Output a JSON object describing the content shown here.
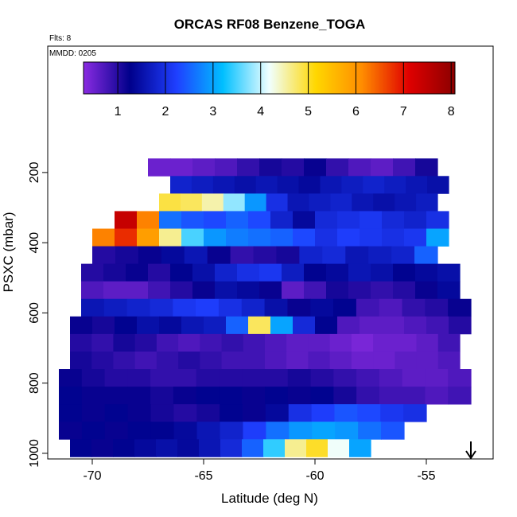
{
  "chart_data": {
    "type": "heatmap-rows",
    "title": "ORCAS RF08 Benzene_TOGA",
    "flights_note": "Flts: 8",
    "date_note": "MMDD: 0205",
    "x_label": "Latitude (deg N)",
    "y_label": "PSXC (mbar)",
    "xlim": [
      -72,
      -52
    ],
    "xticks": [
      -70,
      -65,
      -60,
      -55
    ],
    "ylim": [
      1016,
      -160
    ],
    "yticks": [
      200,
      400,
      600,
      800,
      1000
    ],
    "colorbar": {
      "lim": [
        0.28,
        8.08
      ],
      "ticks": [
        1,
        2,
        3,
        4,
        5,
        6,
        7,
        8
      ],
      "colors": [
        "#8a2be2",
        "#00008b",
        "#1f3fff",
        "#00bfff",
        "#f0ffff",
        "#ffd700",
        "#ff8c00",
        "#e00000",
        "#8b0000"
      ]
    },
    "rows": [
      {
        "p": [
          160,
          210
        ],
        "lat": [
          -67.5,
          -54.5
        ],
        "values": [
          0.5,
          0.5,
          0.6,
          0.7,
          0.9,
          1.1,
          1.0,
          1.2,
          0.9,
          0.7,
          0.6,
          0.8,
          1.1
        ]
      },
      {
        "p": [
          210,
          260
        ],
        "lat": [
          -66.5,
          -54
        ],
        "values": [
          1.8,
          1.7,
          1.6,
          1.5,
          1.6,
          1.5,
          1.4,
          1.6,
          1.7,
          1.8,
          1.7,
          1.6,
          1.5
        ]
      },
      {
        "p": [
          260,
          310
        ],
        "lat": [
          -67,
          -54.5
        ],
        "values": [
          4.9,
          4.8,
          4.5,
          3.8,
          2.9,
          2.0,
          1.6,
          1.7,
          1.8,
          1.6,
          1.5,
          1.6,
          1.7
        ]
      },
      {
        "p": [
          310,
          360
        ],
        "lat": [
          -69,
          -54
        ],
        "values": [
          7.4,
          6.2,
          2.6,
          2.4,
          2.3,
          2.5,
          2.3,
          1.8,
          1.4,
          1.9,
          2.0,
          2.1,
          1.9,
          1.8,
          2.0
        ]
      },
      {
        "p": [
          360,
          410
        ],
        "lat": [
          -70,
          -54
        ],
        "values": [
          6.2,
          6.8,
          5.9,
          4.6,
          3.5,
          2.9,
          2.7,
          2.6,
          2.5,
          2.3,
          2.0,
          2.2,
          2.1,
          2.0,
          2.1,
          3.0
        ]
      },
      {
        "p": [
          410,
          460
        ],
        "lat": [
          -70,
          -54.5
        ],
        "values": [
          1.0,
          1.1,
          1.2,
          1.4,
          1.6,
          1.2,
          0.9,
          1.0,
          1.1,
          1.8,
          1.9,
          1.6,
          1.7,
          1.8,
          2.5
        ]
      },
      {
        "p": [
          460,
          510
        ],
        "lat": [
          -70.5,
          -53.5
        ],
        "values": [
          1.0,
          1.1,
          1.2,
          1.0,
          1.3,
          1.5,
          1.8,
          2.0,
          2.1,
          1.7,
          1.3,
          1.4,
          1.6,
          1.5,
          1.3,
          1.4,
          1.5
        ]
      },
      {
        "p": [
          510,
          560
        ],
        "lat": [
          -70.5,
          -53.5
        ],
        "values": [
          0.7,
          0.6,
          0.6,
          0.8,
          1.0,
          1.2,
          1.5,
          1.4,
          1.2,
          0.6,
          0.8,
          1.1,
          1.0,
          0.9,
          1.0,
          1.2,
          1.4
        ]
      },
      {
        "p": [
          560,
          610
        ],
        "lat": [
          -70.5,
          -53
        ],
        "values": [
          1.6,
          1.7,
          1.8,
          1.9,
          2.1,
          2.2,
          2.0,
          1.8,
          1.5,
          1.2,
          1.4,
          1.3,
          0.8,
          0.7,
          0.9,
          1.0,
          1.2
        ]
      },
      {
        "p": [
          610,
          660
        ],
        "lat": [
          -71,
          -53
        ],
        "values": [
          1.2,
          1.1,
          1.3,
          1.5,
          1.4,
          1.6,
          1.7,
          2.5,
          4.8,
          3.0,
          1.9,
          1.3,
          0.7,
          0.6,
          0.6,
          0.7,
          0.8,
          1.0
        ]
      },
      {
        "p": [
          660,
          710
        ],
        "lat": [
          -71,
          -53.5
        ],
        "values": [
          1.0,
          0.9,
          1.1,
          1.0,
          0.8,
          0.7,
          0.8,
          0.9,
          0.8,
          0.7,
          0.6,
          0.6,
          0.5,
          0.4,
          0.5,
          0.5,
          0.6,
          0.8
        ]
      },
      {
        "p": [
          710,
          760
        ],
        "lat": [
          -71,
          -53.5
        ],
        "values": [
          1.1,
          1.0,
          0.9,
          0.8,
          0.9,
          1.0,
          0.9,
          0.8,
          0.8,
          0.7,
          0.6,
          0.7,
          0.6,
          0.5,
          0.5,
          0.6,
          0.6,
          0.7
        ]
      },
      {
        "p": [
          760,
          810
        ],
        "lat": [
          -71.5,
          -53
        ],
        "values": [
          1.2,
          1.1,
          1.0,
          1.0,
          0.9,
          0.9,
          1.0,
          1.0,
          1.0,
          1.0,
          1.1,
          1.0,
          0.9,
          0.8,
          0.7,
          0.6,
          0.6,
          0.7
        ]
      },
      {
        "p": [
          810,
          860
        ],
        "lat": [
          -71.5,
          -53
        ],
        "values": [
          1.3,
          1.2,
          1.2,
          1.2,
          1.1,
          1.2,
          1.3,
          1.3,
          1.2,
          1.3,
          1.2,
          1.3,
          1.1,
          0.9,
          0.8,
          0.8,
          0.7,
          0.8
        ]
      },
      {
        "p": [
          860,
          910
        ],
        "lat": [
          -71.5,
          -55
        ],
        "values": [
          1.3,
          1.2,
          1.3,
          1.2,
          1.1,
          1.0,
          1.1,
          1.3,
          1.2,
          1.4,
          2.0,
          2.2,
          2.4,
          2.3,
          2.1,
          2.0
        ]
      },
      {
        "p": [
          910,
          960
        ],
        "lat": [
          -71.5,
          -56
        ],
        "values": [
          1.2,
          1.3,
          1.2,
          1.3,
          1.3,
          1.4,
          1.6,
          1.8,
          2.2,
          2.6,
          2.9,
          3.0,
          2.9,
          2.6,
          2.4
        ]
      },
      {
        "p": [
          960,
          1010
        ],
        "lat": [
          -71,
          -57.5
        ],
        "values": [
          1.3,
          1.2,
          1.3,
          1.4,
          1.5,
          1.4,
          1.6,
          1.9,
          2.5,
          3.4,
          4.6,
          5.0,
          4.2,
          3.0
        ]
      }
    ]
  }
}
